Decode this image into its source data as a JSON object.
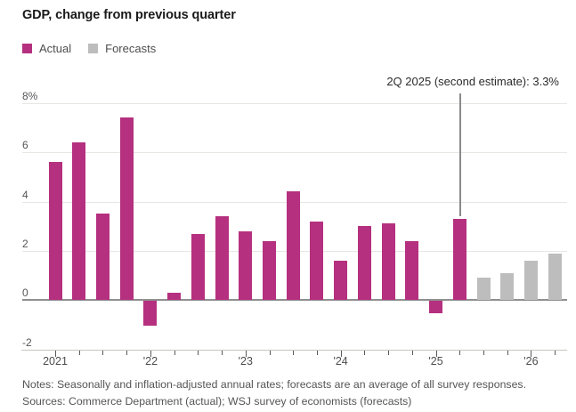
{
  "title": "GDP, change from previous quarter",
  "legend": {
    "actual": "Actual",
    "forecasts": "Forecasts"
  },
  "annotation": {
    "text": "2Q 2025 (second estimate): 3.3%",
    "target_quarter": "2025 Q2",
    "target_value": 3.3
  },
  "notes": "Notes: Seasonally and inflation-adjusted annual rates; forecasts are an average of all survey responses.",
  "sources": "Sources: Commerce Department (actual); WSJ survey of economists (forecasts)",
  "colors": {
    "actual": "#b5307f",
    "forecast": "#bdbdbd",
    "grid": "#e8e6e3",
    "zero_line": "#8f8f8f",
    "axis_line": "#c8c5c1",
    "annotation_line": "#8a8a8a"
  },
  "chart_data": {
    "type": "bar",
    "title": "GDP, change from previous quarter",
    "unit": "percent, seasonally adjusted annual rate",
    "ylim": [
      -2,
      8
    ],
    "grid": true,
    "legend_position": "top-left",
    "ytick_values": [
      8,
      6,
      4,
      2,
      0,
      -2
    ],
    "ytick_labels": [
      "8%",
      "6",
      "4",
      "2",
      "0",
      "-2"
    ],
    "x_year_labels": [
      "2021",
      "'22",
      "'23",
      "'24",
      "'25",
      "'26"
    ],
    "series": [
      {
        "name": "Actual",
        "color": "#b5307f",
        "quarters": [
          "2021 Q1",
          "2021 Q2",
          "2021 Q3",
          "2021 Q4",
          "2022 Q1",
          "2022 Q2",
          "2022 Q3",
          "2022 Q4",
          "2023 Q1",
          "2023 Q2",
          "2023 Q3",
          "2023 Q4",
          "2024 Q1",
          "2024 Q2",
          "2024 Q3",
          "2024 Q4",
          "2025 Q1",
          "2025 Q2"
        ],
        "values": [
          5.6,
          6.4,
          3.5,
          7.4,
          -1.0,
          0.3,
          2.7,
          3.4,
          2.8,
          2.4,
          4.4,
          3.2,
          1.6,
          3.0,
          3.1,
          2.4,
          -0.5,
          3.3
        ]
      },
      {
        "name": "Forecasts",
        "color": "#bdbdbd",
        "quarters": [
          "2025 Q3",
          "2025 Q4",
          "2026 Q1",
          "2026 Q2"
        ],
        "values": [
          0.9,
          1.1,
          1.6,
          1.9
        ]
      }
    ],
    "annotation": "2Q 2025 (second estimate): 3.3%"
  }
}
